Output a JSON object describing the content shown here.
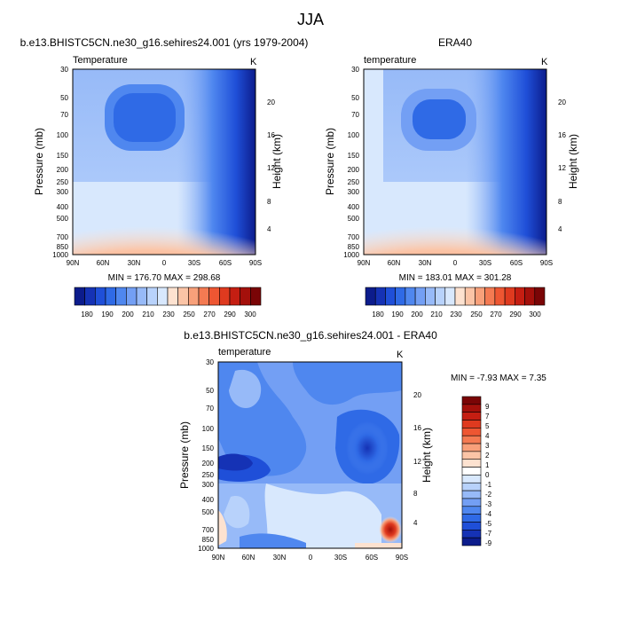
{
  "title": "JJA",
  "colors": {
    "blue_scale": [
      "#0c1c8c",
      "#1532b5",
      "#1f4fd8",
      "#2f6ae6",
      "#4f87ef",
      "#739ff4",
      "#97baf8",
      "#b8d2fb",
      "#d8e8fd"
    ],
    "warm_scale": [
      "#fde2d0",
      "#fbc4a6",
      "#f8a07a",
      "#f47a52",
      "#ee5632",
      "#df3a1f",
      "#c51e12",
      "#a4100b",
      "#7a0506"
    ]
  },
  "chart_data": [
    {
      "type": "heatmap",
      "panel": "model",
      "header": "b.e13.BHISTC5CN.ne30_g16.sehires24.001 (yrs 1979-2004)",
      "left_title": "Temperature",
      "right_title": "K",
      "ylabel": "Pressure (mb)",
      "ylabel_right": "Height (km)",
      "x_ticks": [
        "90N",
        "60N",
        "30N",
        "0",
        "30S",
        "60S",
        "90S"
      ],
      "y_ticks": [
        "30",
        "50",
        "70",
        "100",
        "150",
        "200",
        "250",
        "300",
        "400",
        "500",
        "700",
        "850",
        "1000"
      ],
      "height_ticks": [
        "20",
        "16",
        "12",
        "8",
        "4"
      ],
      "stats": "MIN = 176.70  MAX = 298.68",
      "colorbar_labels": [
        "180",
        "190",
        "200",
        "210",
        "230",
        "250",
        "270",
        "290",
        "300"
      ],
      "min": 176.7,
      "max": 298.68
    },
    {
      "type": "heatmap",
      "panel": "obs",
      "header": "ERA40",
      "left_title": "temperature",
      "right_title": "K",
      "ylabel": "Pressure (mb)",
      "ylabel_right": "Height (km)",
      "x_ticks": [
        "90N",
        "60N",
        "30N",
        "0",
        "30S",
        "60S",
        "90S"
      ],
      "y_ticks": [
        "30",
        "50",
        "70",
        "100",
        "150",
        "200",
        "250",
        "300",
        "400",
        "500",
        "700",
        "850",
        "1000"
      ],
      "height_ticks": [
        "20",
        "16",
        "12",
        "8",
        "4"
      ],
      "stats": "MIN = 183.01  MAX = 301.28",
      "colorbar_labels": [
        "180",
        "190",
        "200",
        "210",
        "230",
        "250",
        "270",
        "290",
        "300"
      ],
      "min": 183.01,
      "max": 301.28
    },
    {
      "type": "heatmap",
      "panel": "diff",
      "header": "b.e13.BHISTC5CN.ne30_g16.sehires24.001 - ERA40",
      "left_title": "temperature",
      "right_title": "K",
      "ylabel": "Pressure (mb)",
      "ylabel_right": "Height (km)",
      "x_ticks": [
        "90N",
        "60N",
        "30N",
        "0",
        "30S",
        "60S",
        "90S"
      ],
      "y_ticks": [
        "30",
        "50",
        "70",
        "100",
        "150",
        "200",
        "250",
        "300",
        "400",
        "500",
        "700",
        "850",
        "1000"
      ],
      "height_ticks": [
        "20",
        "16",
        "12",
        "8",
        "4"
      ],
      "stats": "MIN =  -7.93  MAX =   7.35",
      "colorbar_labels": [
        "9",
        "7",
        "5",
        "4",
        "3",
        "2",
        "1",
        "0",
        "-1",
        "-2",
        "-3",
        "-4",
        "-5",
        "-7",
        "-9"
      ],
      "min": -7.93,
      "max": 7.35
    }
  ]
}
